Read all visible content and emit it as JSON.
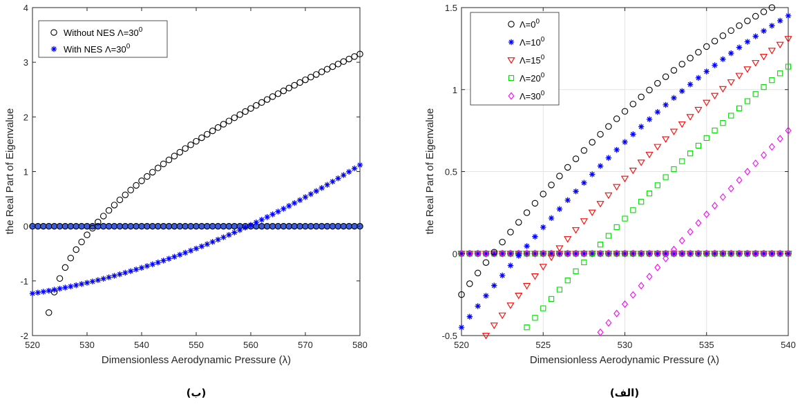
{
  "chart_data": [
    {
      "id": "right",
      "type": "scatter",
      "caption": "(الف)",
      "xlabel": "Dimensionless Aerodynamic Pressure (λ)",
      "ylabel": "the Real Part of Eigenvalue",
      "xlim": [
        520,
        540
      ],
      "ylim": [
        -0.5,
        1.5
      ],
      "xticks": [
        520,
        525,
        530,
        535,
        540
      ],
      "yticks": [
        -0.5,
        0,
        0.5,
        1,
        1.5
      ],
      "xtick_labels": [
        "520",
        "525",
        "530",
        "535",
        "540"
      ],
      "ytick_labels": [
        "-0.5",
        "0",
        "0.5",
        "1",
        "1.5"
      ],
      "grid": true,
      "legend_position": "top-left",
      "zero_line": {
        "x_start": 520,
        "x_end": 540,
        "step": 0.5
      },
      "series": [
        {
          "name": "Λ=0",
          "sup": "0",
          "marker": "circle",
          "color": "#000000",
          "x_start": 520,
          "x_end": 539,
          "step": 0.5,
          "y_start": -0.25,
          "y_end": 1.5,
          "curve": 0.45
        },
        {
          "name": "Λ=10",
          "sup": "0",
          "marker": "star",
          "color": "#0000ff",
          "x_start": 520,
          "x_end": 540,
          "step": 0.5,
          "y_start": -0.45,
          "y_end": 1.45,
          "curve": 0.38
        },
        {
          "name": "Λ=15",
          "sup": "0",
          "marker": "triangle-down",
          "color": "#ff0000",
          "x_start": 521.5,
          "x_end": 540,
          "step": 0.5,
          "y_start": -0.5,
          "y_end": 1.31,
          "curve": 0.28
        },
        {
          "name": "Λ=20",
          "sup": "0",
          "marker": "square",
          "color": "#00dd00",
          "x_start": 524,
          "x_end": 540,
          "step": 0.5,
          "y_start": -0.45,
          "y_end": 1.14,
          "curve": 0.18
        },
        {
          "name": "Λ=30",
          "sup": "0",
          "marker": "diamond",
          "color": "#ff00ff",
          "x_start": 528.5,
          "x_end": 540,
          "step": 0.5,
          "y_start": -0.48,
          "y_end": 0.75,
          "curve": 0.08
        }
      ]
    },
    {
      "id": "left",
      "type": "scatter",
      "caption": "(ب)",
      "xlabel": "Dimensionless Aerodynamic Pressure (λ)",
      "ylabel": "the Real Part of Eigenvalue",
      "xlim": [
        520,
        580
      ],
      "ylim": [
        -2,
        4
      ],
      "xticks": [
        520,
        530,
        540,
        550,
        560,
        570,
        580
      ],
      "yticks": [
        -2,
        -1,
        0,
        1,
        2,
        3,
        4
      ],
      "xtick_labels": [
        "520",
        "530",
        "540",
        "550",
        "560",
        "570",
        "580"
      ],
      "ytick_labels": [
        "-2",
        "-1",
        "0",
        "1",
        "2",
        "3",
        "4"
      ],
      "grid": false,
      "legend_position": "top-left",
      "zero_line": {
        "x_start": 520,
        "x_end": 580,
        "step": 1
      },
      "series": [
        {
          "name": "Without NES Λ=30",
          "sup": "0",
          "marker": "circle",
          "color": "#000000",
          "kind": "sqrt",
          "x_start": 523,
          "x_end": 580,
          "step": 1,
          "y_start": -1.58,
          "y_end": 3.15,
          "x0": 522.6
        },
        {
          "name": "With NES Λ=30",
          "sup": "0",
          "marker": "star",
          "color": "#0000ff",
          "kind": "quad",
          "x_start": 520,
          "x_end": 580,
          "step": 1,
          "y_start": -1.23,
          "y_end": 1.12,
          "curve": 0.6
        }
      ]
    }
  ]
}
